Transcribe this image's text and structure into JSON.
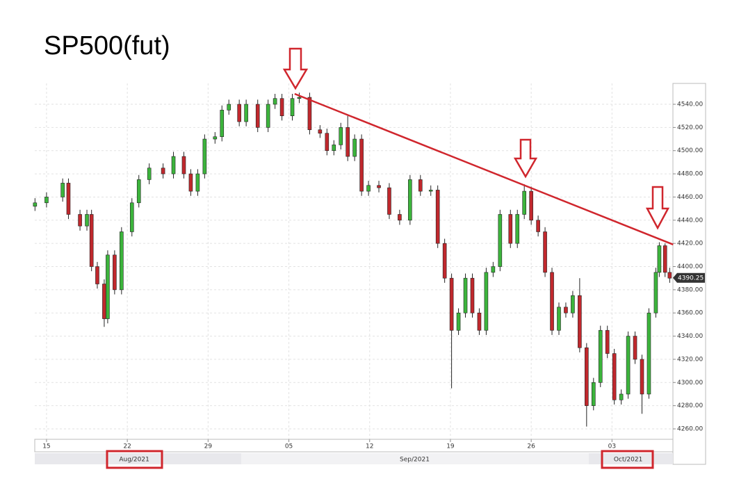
{
  "chart_data": {
    "type": "candlestick",
    "title": "SP500(fut)",
    "x": [
      14.0,
      15.0,
      16.4,
      16.9,
      17.9,
      18.5,
      18.9,
      19.4,
      20.0,
      20.3,
      20.9,
      21.5,
      22.4,
      23.0,
      23.9,
      25.1,
      26.0,
      26.9,
      27.5,
      28.1,
      28.7,
      29.6,
      30.2,
      30.8,
      31.7,
      32.3,
      33.3,
      34.2,
      34.8,
      35.4,
      36.3,
      36.9,
      37.8,
      38.7,
      39.3,
      39.9,
      40.5,
      41.1,
      41.7,
      42.3,
      42.9,
      43.8,
      44.7,
      45.6,
      46.5,
      47.4,
      48.3,
      48.9,
      49.5,
      50.1,
      50.7,
      51.3,
      51.9,
      52.5,
      53.1,
      53.7,
      54.3,
      55.2,
      55.8,
      56.4,
      57.0,
      57.6,
      58.2,
      58.8,
      59.4,
      60.0,
      60.6,
      61.2,
      61.8,
      62.4,
      63.0,
      63.6,
      64.2,
      64.8,
      65.4,
      66.0,
      66.6,
      67.2,
      67.8,
      68.1,
      68.6,
      69.0
    ],
    "open": [
      4452,
      4455,
      4460,
      4472,
      4445,
      4435,
      4445,
      4400,
      4385,
      4355,
      4410,
      4380,
      4430,
      4455,
      4475,
      4485,
      4480,
      4495,
      4480,
      4465,
      4480,
      4510,
      4512,
      4535,
      4540,
      4525,
      4540,
      4520,
      4540,
      4545,
      4530,
      4545,
      4546,
      4518,
      4515,
      4500,
      4505,
      4520,
      4495,
      4510,
      4465,
      4470,
      4468,
      4445,
      4440,
      4475,
      4465,
      4466,
      4420,
      4390,
      4345,
      4360,
      4390,
      4360,
      4345,
      4395,
      4400,
      4445,
      4420,
      4445,
      4465,
      4440,
      4430,
      4395,
      4345,
      4365,
      4360,
      4375,
      4330,
      4280,
      4300,
      4345,
      4325,
      4285,
      4290,
      4340,
      4320,
      4290,
      4360,
      4395,
      4418,
      4395
    ],
    "high": [
      4459,
      4464,
      4476,
      4476,
      4449,
      4449,
      4449,
      4404,
      4389,
      4414,
      4414,
      4434,
      4459,
      4479,
      4489,
      4489,
      4499,
      4499,
      4484,
      4484,
      4514,
      4516,
      4539,
      4544,
      4544,
      4544,
      4544,
      4544,
      4549,
      4549,
      4549,
      4550,
      4550,
      4522,
      4519,
      4509,
      4524,
      4530,
      4514,
      4514,
      4474,
      4474,
      4472,
      4449,
      4479,
      4479,
      4470,
      4470,
      4424,
      4394,
      4364,
      4394,
      4394,
      4364,
      4399,
      4404,
      4449,
      4449,
      4449,
      4471,
      4469,
      4444,
      4434,
      4399,
      4369,
      4369,
      4379,
      4390,
      4334,
      4304,
      4349,
      4349,
      4329,
      4294,
      4344,
      4344,
      4324,
      4364,
      4399,
      4421,
      4420,
      4399
    ],
    "low": [
      4448,
      4451,
      4456,
      4441,
      4431,
      4431,
      4396,
      4381,
      4348,
      4351,
      4376,
      4376,
      4426,
      4451,
      4471,
      4476,
      4476,
      4476,
      4461,
      4461,
      4476,
      4506,
      4508,
      4531,
      4521,
      4521,
      4516,
      4516,
      4536,
      4526,
      4526,
      4541,
      4514,
      4511,
      4496,
      4496,
      4501,
      4491,
      4491,
      4461,
      4461,
      4464,
      4441,
      4436,
      4436,
      4461,
      4461,
      4416,
      4386,
      4295,
      4341,
      4356,
      4356,
      4341,
      4341,
      4391,
      4396,
      4416,
      4416,
      4441,
      4436,
      4426,
      4391,
      4341,
      4341,
      4356,
      4356,
      4326,
      4262,
      4276,
      4296,
      4321,
      4281,
      4281,
      4286,
      4316,
      4273,
      4286,
      4356,
      4391,
      4391,
      4386
    ],
    "close": [
      4455,
      4460,
      4472,
      4445,
      4435,
      4445,
      4400,
      4385,
      4355,
      4410,
      4380,
      4430,
      4455,
      4475,
      4485,
      4480,
      4495,
      4480,
      4465,
      4480,
      4510,
      4512,
      4535,
      4540,
      4525,
      4540,
      4520,
      4540,
      4545,
      4530,
      4545,
      4546,
      4518,
      4515,
      4500,
      4505,
      4520,
      4495,
      4510,
      4465,
      4470,
      4468,
      4445,
      4440,
      4475,
      4465,
      4466,
      4420,
      4390,
      4345,
      4360,
      4390,
      4360,
      4345,
      4395,
      4400,
      4445,
      4420,
      4445,
      4465,
      4440,
      4430,
      4395,
      4345,
      4365,
      4360,
      4375,
      4330,
      4280,
      4300,
      4345,
      4325,
      4285,
      4290,
      4340,
      4320,
      4290,
      4360,
      4395,
      4418,
      4395,
      4390
    ],
    "up_color": "#3cb43c",
    "down_color": "#c0282d",
    "xlim": [
      13.98,
      69.28
    ],
    "xticks": [
      15,
      22,
      29,
      {
        "value": 36,
        "label": "05"
      },
      {
        "value": 43,
        "label": "12"
      },
      {
        "value": 50,
        "label": "19"
      },
      {
        "value": 57,
        "label": "26"
      },
      {
        "value": 64,
        "label": "03"
      }
    ],
    "month_labels": [
      {
        "value": 22.6,
        "label": "Aug/2021"
      },
      {
        "value": 46.9,
        "label": "Sep/2021"
      },
      {
        "value": 65.4,
        "label": "Oct/2021"
      }
    ],
    "ylim": [
      4251,
      4558
    ],
    "yticks": [
      {
        "value": 4260,
        "label": "4260.00"
      },
      {
        "value": 4280,
        "label": "4280.00"
      },
      {
        "value": 4300,
        "label": "4300.00"
      },
      {
        "value": 4320,
        "label": "4320.00"
      },
      {
        "value": 4340,
        "label": "4340.00"
      },
      {
        "value": 4360,
        "label": "4360.00"
      },
      {
        "value": 4380,
        "label": "4380.00"
      },
      {
        "value": 4400,
        "label": "4400.00"
      },
      {
        "value": 4420,
        "label": "4420.00"
      },
      {
        "value": 4440,
        "label": "4440.00"
      },
      {
        "value": 4460,
        "label": "4460.00"
      },
      {
        "value": 4480,
        "label": "4480.00"
      },
      {
        "value": 4500,
        "label": "4500.00"
      },
      {
        "value": 4520,
        "label": "4520.00"
      },
      {
        "value": 4540,
        "label": "4540.00"
      }
    ],
    "last_price": 4390.25,
    "trendline": {
      "x": [
        36.5,
        69.3
      ],
      "y": [
        4549,
        4419
      ],
      "color": "#d0262d"
    },
    "grid": true
  }
}
